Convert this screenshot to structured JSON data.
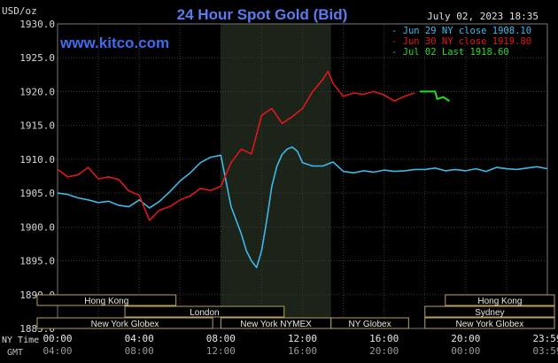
{
  "chart_data": {
    "type": "line",
    "title": "24 Hour Spot Gold (Bid)",
    "unit_label": "USD/oz",
    "watermark": "www.kitco.com",
    "timestamp": "July 02, 2023 18:35",
    "ylim": [
      1885,
      1930
    ],
    "y_ticks": [
      "1930.0",
      "1925.0",
      "1920.0",
      "1915.0",
      "1910.0",
      "1905.0",
      "1900.0",
      "1895.0",
      "1890.0",
      "1885.0"
    ],
    "x_caption_ny": "NY Time",
    "x_caption_gmt": "GMT",
    "x_ticks_ny": [
      "00:00",
      "04:00",
      "08:00",
      "12:00",
      "16:00",
      "20:00",
      "23:59"
    ],
    "x_ticks_gmt": [
      "04:00",
      "08:00",
      "12:00",
      "16:00",
      "20:00",
      "00:00",
      "03:59"
    ],
    "grid": true,
    "legend_position": "top-right",
    "series": [
      {
        "name": "Jun 29 NY close 1908.10",
        "color": "#3fb8e8",
        "x": [
          0,
          0.5,
          1,
          1.5,
          2,
          2.5,
          3,
          3.5,
          4,
          4.5,
          5,
          5.5,
          6,
          6.5,
          7,
          7.5,
          8,
          8.5,
          9,
          9.25,
          9.5,
          9.75,
          10,
          10.25,
          10.5,
          10.75,
          11,
          11.25,
          11.5,
          11.75,
          12,
          12.5,
          13,
          13.5,
          14,
          14.5,
          15,
          15.5,
          16,
          16.5,
          17,
          17.5,
          18,
          18.5,
          19,
          19.5,
          20,
          20.5,
          21,
          21.5,
          22,
          22.5,
          23,
          23.5,
          24
        ],
        "y": [
          1905.0,
          1904.8,
          1904.3,
          1904.0,
          1903.6,
          1903.8,
          1903.2,
          1903.0,
          1904.0,
          1902.8,
          1903.8,
          1905.2,
          1906.8,
          1908.0,
          1909.5,
          1910.3,
          1910.6,
          1903.0,
          1899.0,
          1896.5,
          1895.0,
          1894.0,
          1896.5,
          1901.0,
          1906.0,
          1909.0,
          1910.7,
          1911.5,
          1911.8,
          1911.2,
          1909.5,
          1909.0,
          1909.0,
          1909.6,
          1908.2,
          1908.0,
          1908.3,
          1908.1,
          1908.4,
          1908.2,
          1908.3,
          1908.5,
          1908.5,
          1908.7,
          1908.3,
          1908.5,
          1908.3,
          1908.6,
          1908.2,
          1908.8,
          1908.6,
          1908.5,
          1908.7,
          1908.9,
          1908.6
        ]
      },
      {
        "name": "Jun 30 NY close 1919.80",
        "color": "#e01818",
        "x": [
          0,
          0.5,
          1,
          1.5,
          2,
          2.5,
          3,
          3.5,
          4,
          4.5,
          5,
          5.5,
          6,
          6.5,
          7,
          7.5,
          8,
          8.5,
          9,
          9.5,
          10,
          10.5,
          11,
          11.5,
          12,
          12.5,
          13,
          13.25,
          13.5,
          14,
          14.5,
          15,
          15.5,
          16,
          16.5,
          17,
          17.5
        ],
        "y": [
          1908.5,
          1907.4,
          1907.7,
          1908.8,
          1907.1,
          1907.4,
          1907.0,
          1905.3,
          1904.7,
          1901.0,
          1902.5,
          1903.0,
          1904.0,
          1904.6,
          1905.7,
          1905.4,
          1906.0,
          1909.5,
          1911.5,
          1910.8,
          1916.5,
          1917.5,
          1915.3,
          1916.3,
          1917.5,
          1920.0,
          1921.8,
          1923.0,
          1921.2,
          1919.3,
          1919.8,
          1919.6,
          1920.0,
          1919.5,
          1918.6,
          1919.3,
          1919.8
        ]
      },
      {
        "name": "Jul 02 Last 1918.60",
        "color": "#22dd22",
        "x": [
          17.75,
          18.5,
          18.6,
          18.9,
          19.2
        ],
        "y": [
          1920.0,
          1920.0,
          1918.9,
          1919.2,
          1918.6
        ]
      }
    ],
    "sessions": [
      {
        "name": "Hong Kong",
        "row": 0,
        "from": -1,
        "to": 5.8
      },
      {
        "name": "Hong Kong",
        "row": 0,
        "from": 19.0,
        "to": 24.5
      },
      {
        "name": "London",
        "row": 1,
        "from": 3.3,
        "to": 11.1
      },
      {
        "name": "Sydney",
        "row": 1,
        "from": 18.0,
        "to": 24.5
      },
      {
        "name": "New York Globex",
        "row": 2,
        "from": -1,
        "to": 7.6
      },
      {
        "name": "New York NYMEX",
        "row": 2,
        "from": 8.0,
        "to": 13.4
      },
      {
        "name": "NY Globex",
        "row": 2,
        "from": 13.4,
        "to": 17.2
      },
      {
        "name": "New York Globex",
        "row": 2,
        "from": 18.0,
        "to": 24.5
      }
    ]
  }
}
